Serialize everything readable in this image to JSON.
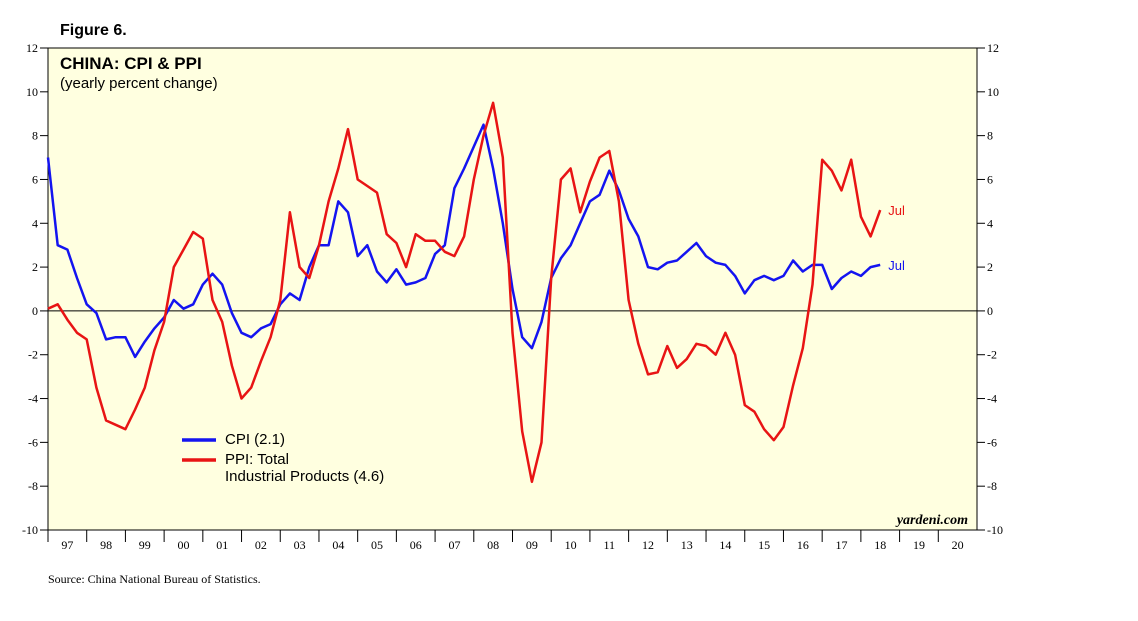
{
  "chart_data": {
    "type": "line",
    "figure_label": "Figure 6.",
    "title": "CHINA: CPI & PPI",
    "subtitle": "(yearly percent change)",
    "source": "Source: China National Bureau of Statistics.",
    "watermark": "yardeni.com",
    "x": [
      1997,
      1997.25,
      1997.5,
      1997.75,
      1998,
      1998.25,
      1998.5,
      1998.75,
      1999,
      1999.25,
      1999.5,
      1999.75,
      2000,
      2000.25,
      2000.5,
      2000.75,
      2001,
      2001.25,
      2001.5,
      2001.75,
      2002,
      2002.25,
      2002.5,
      2002.75,
      2003,
      2003.25,
      2003.5,
      2003.75,
      2004,
      2004.25,
      2004.5,
      2004.75,
      2005,
      2005.25,
      2005.5,
      2005.75,
      2006,
      2006.25,
      2006.5,
      2006.75,
      2007,
      2007.25,
      2007.5,
      2007.75,
      2008,
      2008.25,
      2008.5,
      2008.75,
      2009,
      2009.25,
      2009.5,
      2009.75,
      2010,
      2010.25,
      2010.5,
      2010.75,
      2011,
      2011.25,
      2011.5,
      2011.75,
      2012,
      2012.25,
      2012.5,
      2012.75,
      2013,
      2013.25,
      2013.5,
      2013.75,
      2014,
      2014.25,
      2014.5,
      2014.75,
      2015,
      2015.25,
      2015.5,
      2015.75,
      2016,
      2016.25,
      2016.5,
      2016.75,
      2017,
      2017.25,
      2017.5,
      2017.75,
      2018,
      2018.25,
      2018.5
    ],
    "series": [
      {
        "name": "CPI (2.1)",
        "color": "#1414f0",
        "end_label": "Jul",
        "values": [
          7,
          3.0,
          2.8,
          1.5,
          0.3,
          -0.1,
          -1.3,
          -1.2,
          -1.2,
          -2.1,
          -1.4,
          -0.8,
          -0.3,
          0.5,
          0.1,
          0.3,
          1.2,
          1.7,
          1.2,
          -0.1,
          -1.0,
          -1.2,
          -0.8,
          -0.6,
          0.3,
          0.8,
          0.5,
          2.0,
          3.0,
          3.0,
          5.0,
          4.5,
          2.5,
          3.0,
          1.8,
          1.3,
          1.9,
          1.2,
          1.3,
          1.5,
          2.6,
          3.0,
          5.6,
          6.5,
          7.5,
          8.5,
          6.5,
          4.0,
          1.0,
          -1.2,
          -1.7,
          -0.5,
          1.5,
          2.4,
          3.0,
          4.0,
          5.0,
          5.3,
          6.4,
          5.5,
          4.2,
          3.4,
          2.0,
          1.9,
          2.2,
          2.3,
          2.7,
          3.1,
          2.5,
          2.2,
          2.1,
          1.6,
          0.8,
          1.4,
          1.6,
          1.4,
          1.6,
          2.3,
          1.8,
          2.1,
          2.1,
          1.0,
          1.5,
          1.8,
          1.6,
          2.0,
          2.1
        ]
      },
      {
        "name": "PPI: Total\nIndustrial Products (4.6)",
        "color": "#e81414",
        "end_label": "Jul",
        "values": [
          0.1,
          0.3,
          -0.4,
          -1.0,
          -1.3,
          -3.5,
          -5.0,
          -5.2,
          -5.4,
          -4.5,
          -3.5,
          -1.8,
          -0.5,
          2.0,
          2.8,
          3.6,
          3.3,
          0.5,
          -0.5,
          -2.5,
          -4.0,
          -3.5,
          -2.3,
          -1.2,
          0.5,
          4.5,
          2.0,
          1.5,
          3.0,
          5.0,
          6.5,
          8.3,
          6.0,
          5.7,
          5.4,
          3.5,
          3.1,
          2.0,
          3.5,
          3.2,
          3.2,
          2.7,
          2.5,
          3.4,
          6.0,
          8.0,
          9.5,
          7.0,
          -1.0,
          -5.5,
          -7.8,
          -6.0,
          1.5,
          6.0,
          6.5,
          4.5,
          5.9,
          7.0,
          7.3,
          5.0,
          0.5,
          -1.5,
          -2.9,
          -2.8,
          -1.6,
          -2.6,
          -2.2,
          -1.5,
          -1.6,
          -2.0,
          -1.0,
          -2.0,
          -4.3,
          -4.6,
          -5.4,
          -5.9,
          -5.3,
          -3.4,
          -1.7,
          1.2,
          6.9,
          6.4,
          5.5,
          6.9,
          4.3,
          3.4,
          4.6
        ]
      }
    ],
    "xlim": [
      1997,
      2021
    ],
    "xticks": [
      {
        "value": 1997.5,
        "label": "97"
      },
      {
        "value": 1998.5,
        "label": "98"
      },
      {
        "value": 1999.5,
        "label": "99"
      },
      {
        "value": 2000.5,
        "label": "00"
      },
      {
        "value": 2001.5,
        "label": "01"
      },
      {
        "value": 2002.5,
        "label": "02"
      },
      {
        "value": 2003.5,
        "label": "03"
      },
      {
        "value": 2004.5,
        "label": "04"
      },
      {
        "value": 2005.5,
        "label": "05"
      },
      {
        "value": 2006.5,
        "label": "06"
      },
      {
        "value": 2007.5,
        "label": "07"
      },
      {
        "value": 2008.5,
        "label": "08"
      },
      {
        "value": 2009.5,
        "label": "09"
      },
      {
        "value": 2010.5,
        "label": "10"
      },
      {
        "value": 2011.5,
        "label": "11"
      },
      {
        "value": 2012.5,
        "label": "12"
      },
      {
        "value": 2013.5,
        "label": "13"
      },
      {
        "value": 2014.5,
        "label": "14"
      },
      {
        "value": 2015.5,
        "label": "15"
      },
      {
        "value": 2016.5,
        "label": "16"
      },
      {
        "value": 2017.5,
        "label": "17"
      },
      {
        "value": 2018.5,
        "label": "18"
      },
      {
        "value": 2019.5,
        "label": "19"
      },
      {
        "value": 2020.5,
        "label": "20"
      }
    ],
    "ylim": [
      -10,
      12
    ],
    "yticks": [
      -10,
      -8,
      -6,
      -4,
      -2,
      0,
      2,
      4,
      6,
      8,
      10,
      12
    ],
    "background": "#ffffe0"
  }
}
